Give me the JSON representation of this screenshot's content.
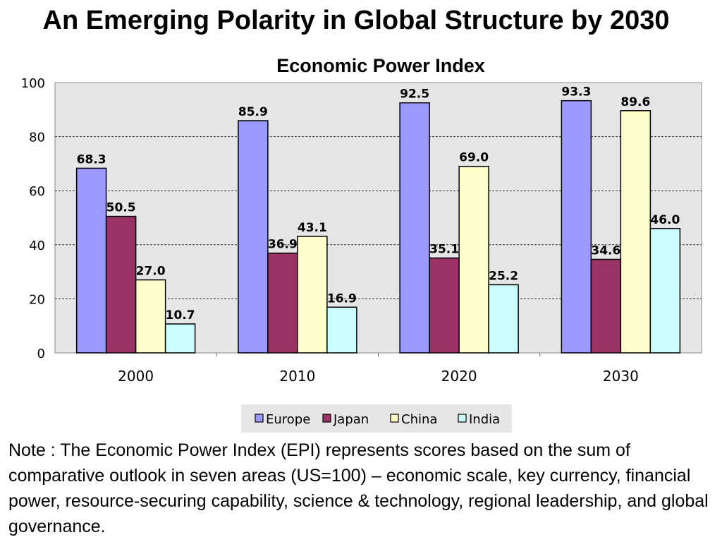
{
  "page": {
    "title": "An Emerging Polarity in Global Structure by 2030",
    "note": "Note : The Economic Power Index (EPI) represents scores based on the sum of comparative outlook in seven areas (US=100) – economic scale, key currency, financial power, resource-securing capability, science & technology, regional leadership, and global governance."
  },
  "chart_data": {
    "type": "bar",
    "title": "Economic Power Index",
    "xlabel": "",
    "ylabel": "",
    "categories": [
      "2000",
      "2010",
      "2020",
      "2030"
    ],
    "series": [
      {
        "name": "Europe",
        "values": [
          68.3,
          85.9,
          92.5,
          93.3
        ],
        "color": "#9999ff"
      },
      {
        "name": "Japan",
        "values": [
          50.5,
          36.9,
          35.1,
          34.6
        ],
        "color": "#993366"
      },
      {
        "name": "China",
        "values": [
          27.0,
          43.1,
          69.0,
          89.6
        ],
        "color": "#ffffcc"
      },
      {
        "name": "India",
        "values": [
          10.7,
          16.9,
          25.2,
          46.0
        ],
        "color": "#ccffff"
      }
    ],
    "value_labels": [
      [
        "68.3",
        "85.9",
        "92.5",
        "93.3"
      ],
      [
        "50.5",
        "36.9",
        "35.1",
        "34.6"
      ],
      [
        "27.0",
        "43.1",
        "69.0",
        "89.6"
      ],
      [
        "10.7",
        "16.9",
        "25.2",
        "46.0"
      ]
    ],
    "yticks": [
      "0",
      "20",
      "40",
      "60",
      "80",
      "100"
    ],
    "ylim": [
      0,
      100
    ],
    "grid": true,
    "legend_position": "bottom"
  }
}
